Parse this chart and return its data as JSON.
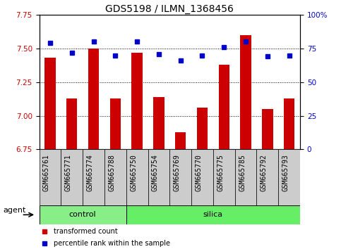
{
  "title": "GDS5198 / ILMN_1368456",
  "samples": [
    "GSM665761",
    "GSM665771",
    "GSM665774",
    "GSM665788",
    "GSM665750",
    "GSM665754",
    "GSM665769",
    "GSM665770",
    "GSM665775",
    "GSM665785",
    "GSM665792",
    "GSM665793"
  ],
  "red_values": [
    7.43,
    7.13,
    7.5,
    7.13,
    7.47,
    7.14,
    6.88,
    7.06,
    7.38,
    7.6,
    7.05,
    7.13
  ],
  "blue_values": [
    79,
    72,
    80,
    70,
    80,
    71,
    66,
    70,
    76,
    80,
    69,
    70
  ],
  "control_count": 4,
  "silica_count": 8,
  "ylim_left": [
    6.75,
    7.75
  ],
  "ylim_right": [
    0,
    100
  ],
  "yticks_left": [
    6.75,
    7.0,
    7.25,
    7.5,
    7.75
  ],
  "yticks_right": [
    0,
    25,
    50,
    75,
    100
  ],
  "ytick_labels_right": [
    "0",
    "25",
    "50",
    "75",
    "100%"
  ],
  "hlines": [
    7.0,
    7.25,
    7.5
  ],
  "bar_color": "#cc0000",
  "dot_color": "#0000cc",
  "control_color": "#88ee88",
  "silica_color": "#66ee66",
  "agent_label": "agent",
  "control_label": "control",
  "silica_label": "silica",
  "legend_bar_label": "transformed count",
  "legend_dot_label": "percentile rank within the sample",
  "title_fontsize": 10,
  "tick_fontsize": 7.5,
  "sample_fontsize": 7,
  "label_fontsize": 8,
  "gray_bg": "#cccccc",
  "bar_width": 0.5
}
